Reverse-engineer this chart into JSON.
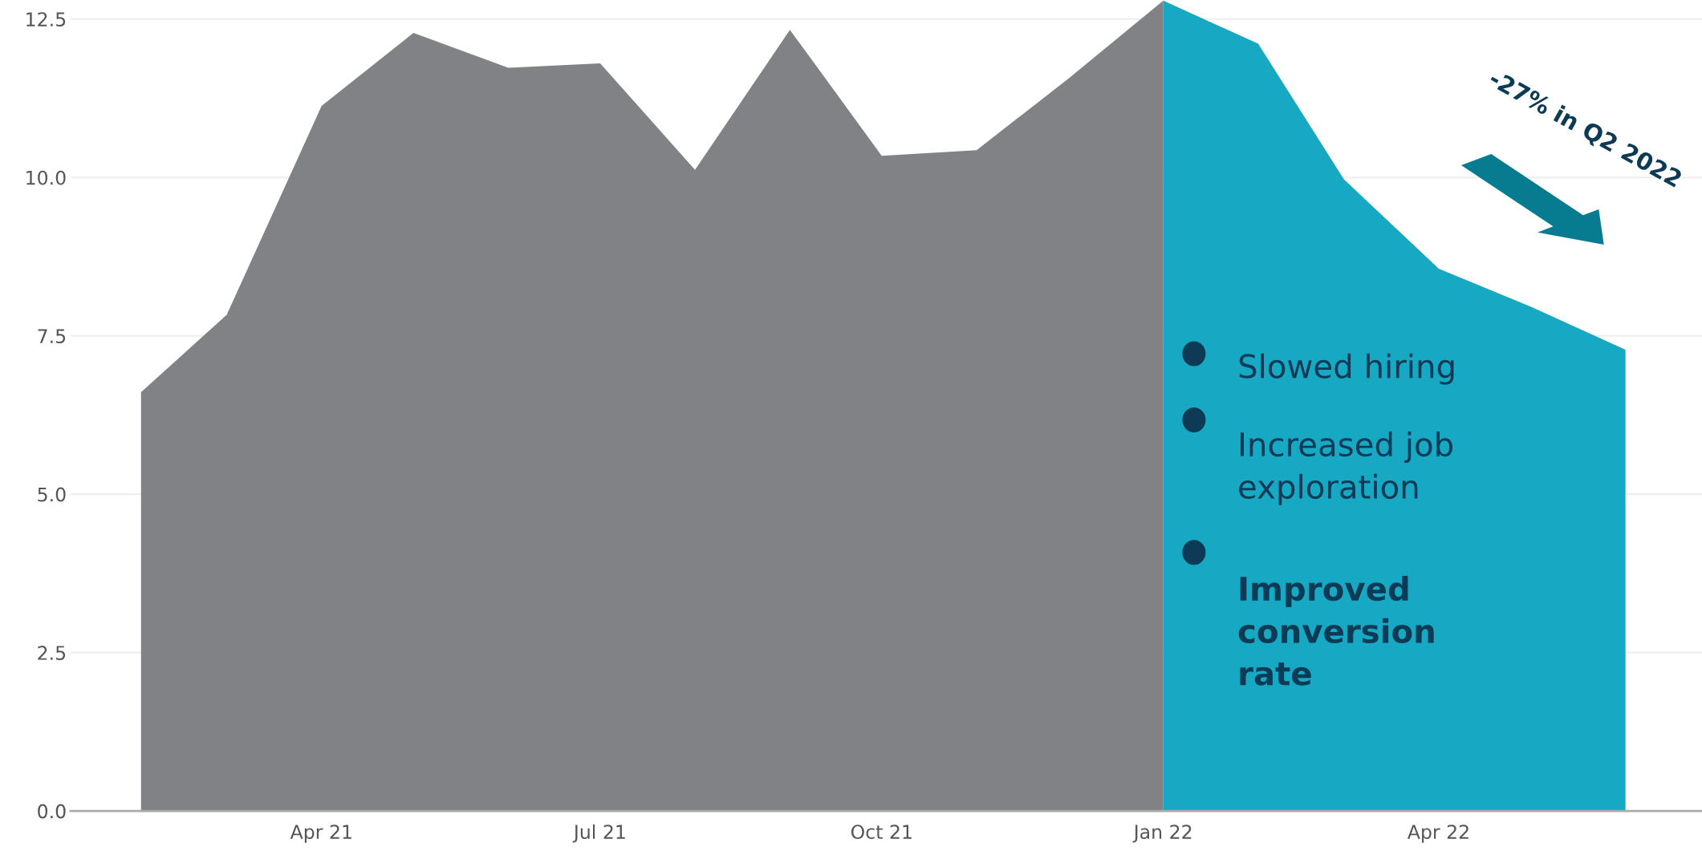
{
  "chart_data": {
    "type": "area",
    "series": [
      {
        "color": "#818285",
        "x": [
          "2021-02",
          "2021-03",
          "2021-04",
          "2021-05",
          "2021-06",
          "2021-07",
          "2021-08",
          "2021-09",
          "2021-10",
          "2021-11",
          "2021-12",
          "2022-01"
        ],
        "values": [
          6.61,
          7.83,
          11.13,
          12.28,
          11.73,
          11.8,
          10.12,
          12.33,
          10.34,
          10.43,
          11.56,
          12.79
        ]
      },
      {
        "color": "#17a9c4",
        "x": [
          "2022-01",
          "2022-02",
          "2022-03",
          "2022-04",
          "2022-05",
          "2022-06"
        ],
        "values": [
          12.79,
          12.11,
          9.97,
          8.56,
          7.96,
          7.28
        ]
      }
    ],
    "xlim": [
      "2021-01-09",
      "2022-06-26"
    ],
    "xticks": [
      {
        "value": "2021-04",
        "label": "Apr 21"
      },
      {
        "value": "2021-07",
        "label": "Jul 21"
      },
      {
        "value": "2021-10",
        "label": "Oct 21"
      },
      {
        "value": "2022-01",
        "label": "Jan 22"
      },
      {
        "value": "2022-04",
        "label": "Apr 22"
      }
    ],
    "ylim": [
      0,
      12.8
    ],
    "yticks": [
      {
        "value": 0,
        "label": "0.0"
      },
      {
        "value": 2.5,
        "label": "2.5"
      },
      {
        "value": 5,
        "label": "5.0"
      },
      {
        "value": 7.5,
        "label": "7.5"
      },
      {
        "value": 10,
        "label": "10.0"
      },
      {
        "value": 12.5,
        "label": "12.5"
      }
    ],
    "grid": "y",
    "annotations": [
      "-27% in Q2 2022",
      "Slowed hiring",
      "Increased job exploration",
      "Improved conversion rate"
    ]
  }
}
